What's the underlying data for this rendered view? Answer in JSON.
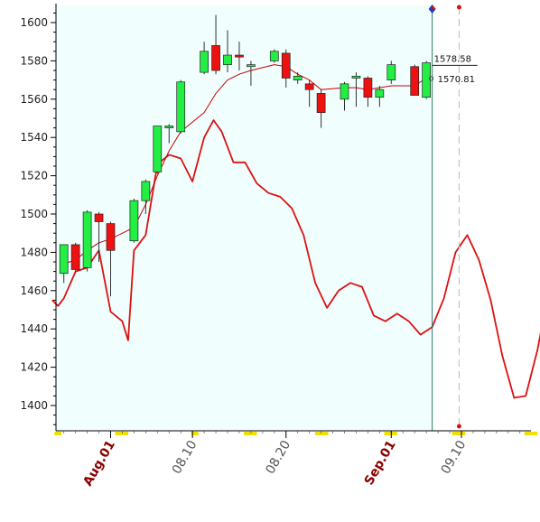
{
  "chart_data": {
    "type": "candlestick",
    "title": "",
    "xlabel": "",
    "ylabel": "",
    "ylim": [
      1388,
      1610
    ],
    "yticks": [
      1400,
      1420,
      1440,
      1460,
      1480,
      1500,
      1520,
      1540,
      1560,
      1580,
      1600
    ],
    "x_tick_labels": [
      {
        "label": "Aug.01",
        "x": 0,
        "highlight": true
      },
      {
        "label": "08.10",
        "x": 7,
        "highlight": false
      },
      {
        "label": "08.20",
        "x": 15,
        "highlight": false
      },
      {
        "label": "Sep.01",
        "x": 24,
        "highlight": true
      },
      {
        "label": "09.10",
        "x": 30,
        "highlight": false
      }
    ],
    "price_labels": [
      "1578.58",
      "1570.81"
    ],
    "colors": {
      "up": "#22ee44",
      "down": "#ee1111",
      "ma_line": "#cc0000",
      "oscillator": "#dd1111",
      "plot_bg": "#f0fefe",
      "cursor_line": "#2a7a6a",
      "future_line": "#bbbbbb",
      "marker_blue": "#1a3ccc",
      "marker_red": "#dd1111",
      "tick_mark": "#f0e000"
    },
    "candles": [
      {
        "x": -4,
        "open": 1469,
        "high": 1484,
        "low": 1464,
        "close": 1484
      },
      {
        "x": -3,
        "open": 1484,
        "high": 1485,
        "low": 1470,
        "close": 1471
      },
      {
        "x": -2,
        "open": 1472,
        "high": 1502,
        "low": 1470,
        "close": 1501
      },
      {
        "x": -1,
        "open": 1500,
        "high": 1501,
        "low": 1475,
        "close": 1496
      },
      {
        "x": 0,
        "open": 1495,
        "high": 1496,
        "low": 1457,
        "close": 1481
      },
      {
        "x": 2,
        "open": 1486,
        "high": 1508,
        "low": 1485,
        "close": 1507
      },
      {
        "x": 3,
        "open": 1507,
        "high": 1518,
        "low": 1500,
        "close": 1517
      },
      {
        "x": 4,
        "open": 1522,
        "high": 1546,
        "low": 1521,
        "close": 1546
      },
      {
        "x": 5,
        "open": 1545,
        "high": 1547,
        "low": 1537,
        "close": 1546
      },
      {
        "x": 6,
        "open": 1543,
        "high": 1570,
        "low": 1542,
        "close": 1569
      },
      {
        "x": 8,
        "open": 1574,
        "high": 1590,
        "low": 1573,
        "close": 1585
      },
      {
        "x": 9,
        "open": 1588,
        "high": 1604,
        "low": 1573,
        "close": 1575
      },
      {
        "x": 10,
        "open": 1578,
        "high": 1596,
        "low": 1574,
        "close": 1583
      },
      {
        "x": 11,
        "open": 1583,
        "high": 1590,
        "low": 1575,
        "close": 1582
      },
      {
        "x": 12,
        "open": 1577,
        "high": 1580,
        "low": 1567,
        "close": 1578
      },
      {
        "x": 14,
        "open": 1580,
        "high": 1586,
        "low": 1579,
        "close": 1585
      },
      {
        "x": 15,
        "open": 1584,
        "high": 1586,
        "low": 1566,
        "close": 1571
      },
      {
        "x": 16,
        "open": 1570,
        "high": 1574,
        "low": 1568,
        "close": 1572
      },
      {
        "x": 17,
        "open": 1568,
        "high": 1570,
        "low": 1556,
        "close": 1565
      },
      {
        "x": 18,
        "open": 1563,
        "high": 1565,
        "low": 1545,
        "close": 1553
      },
      {
        "x": 20,
        "open": 1560,
        "high": 1569,
        "low": 1554,
        "close": 1568
      },
      {
        "x": 21,
        "open": 1571,
        "high": 1574,
        "low": 1556,
        "close": 1572
      },
      {
        "x": 22,
        "open": 1571,
        "high": 1572,
        "low": 1556,
        "close": 1561
      },
      {
        "x": 23,
        "open": 1561,
        "high": 1567,
        "low": 1556,
        "close": 1565
      },
      {
        "x": 24,
        "open": 1570,
        "high": 1580,
        "low": 1568,
        "close": 1578
      },
      {
        "x": 26,
        "open": 1577,
        "high": 1578,
        "low": 1562,
        "close": 1562
      },
      {
        "x": 27,
        "open": 1561,
        "high": 1580,
        "low": 1560,
        "close": 1579
      }
    ],
    "moving_average": [
      {
        "x": -4,
        "y": 1474
      },
      {
        "x": -3,
        "y": 1476
      },
      {
        "x": -2,
        "y": 1481
      },
      {
        "x": -1,
        "y": 1485
      },
      {
        "x": 0,
        "y": 1487
      },
      {
        "x": 2,
        "y": 1493
      },
      {
        "x": 3,
        "y": 1505
      },
      {
        "x": 4,
        "y": 1520
      },
      {
        "x": 5,
        "y": 1533
      },
      {
        "x": 6,
        "y": 1543
      },
      {
        "x": 8,
        "y": 1553
      },
      {
        "x": 9,
        "y": 1563
      },
      {
        "x": 10,
        "y": 1570
      },
      {
        "x": 11,
        "y": 1573
      },
      {
        "x": 12,
        "y": 1575
      },
      {
        "x": 14,
        "y": 1578
      },
      {
        "x": 15,
        "y": 1577
      },
      {
        "x": 16,
        "y": 1573
      },
      {
        "x": 17,
        "y": 1570
      },
      {
        "x": 18,
        "y": 1565
      },
      {
        "x": 20,
        "y": 1566
      },
      {
        "x": 21,
        "y": 1566
      },
      {
        "x": 22,
        "y": 1565
      },
      {
        "x": 23,
        "y": 1566
      },
      {
        "x": 24,
        "y": 1567
      },
      {
        "x": 26,
        "y": 1567
      },
      {
        "x": 27,
        "y": 1571
      }
    ],
    "oscillator": [
      {
        "x": -5,
        "y": 1455
      },
      {
        "x": -4.5,
        "y": 1452
      },
      {
        "x": -4,
        "y": 1456
      },
      {
        "x": -3,
        "y": 1470
      },
      {
        "x": -2,
        "y": 1472
      },
      {
        "x": -1,
        "y": 1481
      },
      {
        "x": 0,
        "y": 1449
      },
      {
        "x": 1,
        "y": 1444
      },
      {
        "x": 1.5,
        "y": 1434
      },
      {
        "x": 2,
        "y": 1481
      },
      {
        "x": 3,
        "y": 1489
      },
      {
        "x": 4,
        "y": 1526
      },
      {
        "x": 5,
        "y": 1531
      },
      {
        "x": 6,
        "y": 1529
      },
      {
        "x": 7,
        "y": 1517
      },
      {
        "x": 8,
        "y": 1540
      },
      {
        "x": 8.8,
        "y": 1549
      },
      {
        "x": 9.5,
        "y": 1543
      },
      {
        "x": 10.5,
        "y": 1527
      },
      {
        "x": 11.5,
        "y": 1527
      },
      {
        "x": 12.5,
        "y": 1516
      },
      {
        "x": 13.5,
        "y": 1511
      },
      {
        "x": 14.5,
        "y": 1509
      },
      {
        "x": 15.5,
        "y": 1503
      },
      {
        "x": 16.5,
        "y": 1489
      },
      {
        "x": 17.5,
        "y": 1464
      },
      {
        "x": 18.5,
        "y": 1451
      },
      {
        "x": 19.5,
        "y": 1460
      },
      {
        "x": 20.5,
        "y": 1464
      },
      {
        "x": 21.5,
        "y": 1462
      },
      {
        "x": 22.5,
        "y": 1447
      },
      {
        "x": 23.5,
        "y": 1444
      },
      {
        "x": 24.5,
        "y": 1448
      },
      {
        "x": 25.5,
        "y": 1444
      },
      {
        "x": 26.5,
        "y": 1437
      },
      {
        "x": 27.5,
        "y": 1441
      },
      {
        "x": 28.5,
        "y": 1456
      },
      {
        "x": 29.5,
        "y": 1480
      },
      {
        "x": 30.5,
        "y": 1489
      },
      {
        "x": 31.5,
        "y": 1476
      },
      {
        "x": 32.5,
        "y": 1455
      },
      {
        "x": 33.5,
        "y": 1426
      },
      {
        "x": 34.5,
        "y": 1404
      },
      {
        "x": 35.5,
        "y": 1405
      },
      {
        "x": 36.5,
        "y": 1429
      },
      {
        "x": 37.5,
        "y": 1461
      },
      {
        "x": 38.5,
        "y": 1480
      },
      {
        "x": 39.5,
        "y": 1489
      }
    ],
    "cursor_x": 27.5,
    "future_x": 29.8
  }
}
